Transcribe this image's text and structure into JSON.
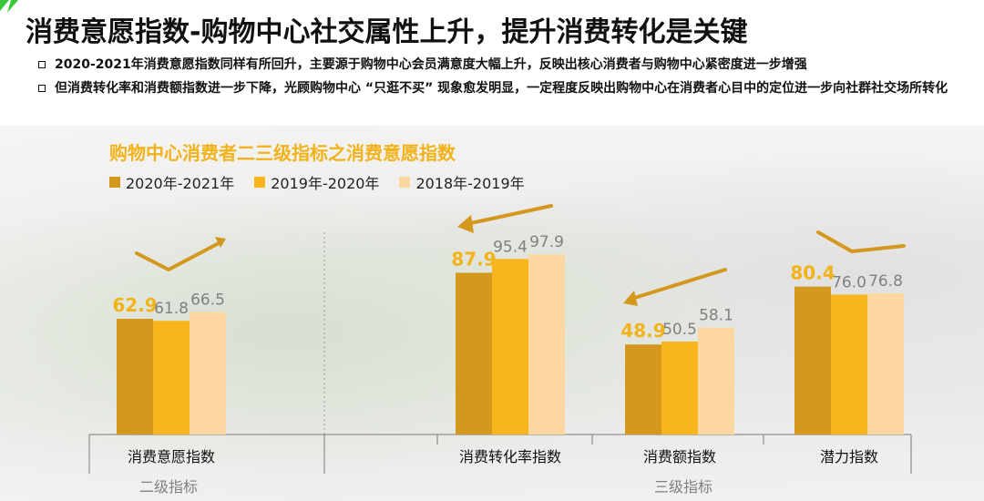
{
  "header": {
    "title": "消费意愿指数-购物中心社交属性上升，提升消费转化是关键",
    "bullets": [
      "2020-2021年消费意愿指数同样有所回升，主要源于购物中心会员满意度大幅上升，反映出核心消费者与购物中心紧密度进一步增强",
      "但消费转化率和消费额指数进一步下降，光顾购物中心 “只逛不买” 现象愈发明显，一定程度反映出购物中心在消费者心目中的定位进一步向社群社交场所转化"
    ]
  },
  "colors": {
    "series_2020_2021": "#d4981f",
    "series_2019_2020": "#f8b61c",
    "series_2018_2019": "#fdd7a2",
    "highlight_label": "#f2b21a",
    "label_gray": "#808080",
    "arrow": "#d4981f"
  },
  "chart_data": {
    "type": "bar",
    "title": "购物中心消费者二三级指标之消费意愿指数",
    "categories": [
      "消费意愿指数",
      "消费转化率指数",
      "消费额指数",
      "潜力指数"
    ],
    "series": [
      {
        "name": "2020年-2021年",
        "values": [
          62.9,
          87.9,
          48.9,
          80.4
        ]
      },
      {
        "name": "2019年-2020年",
        "values": [
          61.8,
          95.4,
          50.5,
          76.0
        ]
      },
      {
        "name": "2018年-2019年",
        "values": [
          66.5,
          97.9,
          58.1,
          76.8
        ]
      }
    ],
    "groups": [
      {
        "label": "二级指标",
        "categories": [
          "消费意愿指数"
        ]
      },
      {
        "label": "三级指标",
        "categories": [
          "消费转化率指数",
          "消费额指数",
          "潜力指数"
        ]
      }
    ],
    "value_labels": [
      [
        "62.9",
        "61.8",
        "66.5"
      ],
      [
        "87.9",
        "95.4",
        "97.9"
      ],
      [
        "48.9",
        "50.5",
        "58.1"
      ],
      [
        "80.4",
        "76.0",
        "76.8"
      ]
    ],
    "legend_position": "top-left",
    "grid": false
  }
}
